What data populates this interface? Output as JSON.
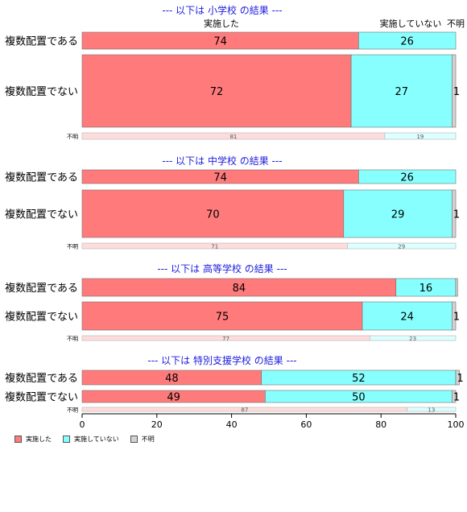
{
  "chart_data": {
    "type": "bar",
    "orientation": "horizontal",
    "stacked": true,
    "xlim": [
      0,
      100
    ],
    "xticks": [
      "0",
      "20",
      "40",
      "60",
      "80",
      "100"
    ],
    "column_headers": {
      "done": "実施した",
      "not_done": "実施していない",
      "unknown": "不明"
    },
    "legend": [
      "実施した",
      "実施していない",
      "不明"
    ],
    "colors": {
      "done": "#ff7b7b",
      "not_done": "#88ffff",
      "unknown": "#d3d3d3"
    },
    "groups": [
      {
        "title": "--- 以下は 小学校 の結果 ---",
        "rows": [
          {
            "label": "複数配置である",
            "values": [
              74,
              26,
              0
            ],
            "labels": [
              "74",
              "26",
              ""
            ]
          },
          {
            "label": "複数配置でない",
            "values": [
              72,
              27,
              1
            ],
            "labels": [
              "72",
              "27",
              "1"
            ]
          },
          {
            "label": "不明",
            "values": [
              81,
              19,
              0
            ],
            "labels": [
              "81",
              "19",
              ""
            ]
          }
        ]
      },
      {
        "title": "--- 以下は 中学校 の結果 ---",
        "rows": [
          {
            "label": "複数配置である",
            "values": [
              74,
              26,
              0
            ],
            "labels": [
              "74",
              "26",
              ""
            ]
          },
          {
            "label": "複数配置でない",
            "values": [
              70,
              29,
              1
            ],
            "labels": [
              "70",
              "29",
              "1"
            ]
          },
          {
            "label": "不明",
            "values": [
              71,
              29,
              0
            ],
            "labels": [
              "71",
              "29",
              ""
            ]
          }
        ]
      },
      {
        "title": "--- 以下は 高等学校 の結果 ---",
        "rows": [
          {
            "label": "複数配置である",
            "values": [
              84,
              16,
              0.5
            ],
            "labels": [
              "84",
              "16",
              ""
            ]
          },
          {
            "label": "複数配置でない",
            "values": [
              75,
              24,
              1
            ],
            "labels": [
              "75",
              "24",
              "1"
            ]
          },
          {
            "label": "不明",
            "values": [
              77,
              23,
              0
            ],
            "labels": [
              "77",
              "23",
              ""
            ]
          }
        ]
      },
      {
        "title": "--- 以下は 特別支援学校 の結果 ---",
        "rows": [
          {
            "label": "複数配置である",
            "values": [
              48,
              52,
              1
            ],
            "labels": [
              "48",
              "52",
              "1"
            ]
          },
          {
            "label": "複数配置でない",
            "values": [
              49,
              50,
              1
            ],
            "labels": [
              "49",
              "50",
              "1"
            ]
          },
          {
            "label": "不明",
            "values": [
              87,
              13,
              0
            ],
            "labels": [
              "87",
              "13",
              ""
            ]
          }
        ]
      }
    ]
  }
}
